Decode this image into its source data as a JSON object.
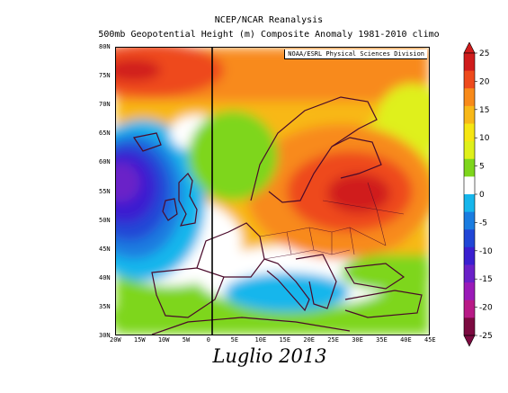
{
  "header": {
    "title_line1": "NCEP/NCAR Reanalysis",
    "title_line2": "500mb Geopotential Height (m) Composite Anomaly 1981-2010 climo"
  },
  "map": {
    "credit": "NOAA/ESRL Physical Sciences Division",
    "lat_labels": [
      "80N",
      "75N",
      "70N",
      "65N",
      "60N",
      "55N",
      "50N",
      "45N",
      "40N",
      "35N",
      "30N"
    ],
    "lon_labels": [
      "20W",
      "15W",
      "10W",
      "5W",
      "0",
      "5E",
      "10E",
      "15E",
      "20E",
      "25E",
      "30E",
      "35E",
      "40E",
      "45E"
    ],
    "extent": {
      "lon_min": -20,
      "lon_max": 45,
      "lat_min": 30,
      "lat_max": 80
    }
  },
  "colorbar": {
    "ticks": [
      "25",
      "20",
      "15",
      "10",
      "5",
      "0",
      "-5",
      "-10",
      "-15",
      "-20",
      "-25"
    ],
    "colors": [
      "#d01c1c",
      "#ee4a1c",
      "#f88a1a",
      "#f8b818",
      "#f6e612",
      "#dff01a",
      "#7ed61c",
      "#ffffff",
      "#16b6ec",
      "#1a7ce0",
      "#2146d6",
      "#3a1fd0",
      "#6a20c8",
      "#9a1ab8",
      "#b81a86",
      "#7c0a40"
    ]
  },
  "caption": "Luglio 2013"
}
